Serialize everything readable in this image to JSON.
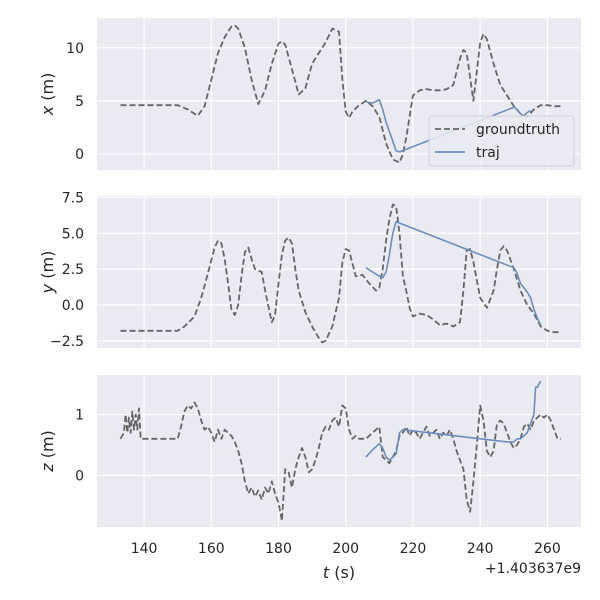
{
  "chart_data": [
    {
      "type": "line",
      "ylabel_var": "x",
      "ylabel_unit": " (m)",
      "xlim": [
        126,
        270
      ],
      "ylim": [
        -1.5,
        12.8
      ],
      "yticks": [
        0,
        5,
        10
      ],
      "ytick_labels": [
        "0",
        "5",
        "10"
      ],
      "grid": true,
      "legend": {
        "position": "lower-right",
        "entries": [
          "groundtruth",
          "traj"
        ]
      },
      "series": [
        {
          "name": "groundtruth",
          "style": "dashed",
          "color": "#666666",
          "x": [
            133,
            140,
            146,
            150,
            153,
            156,
            158,
            160,
            162,
            164,
            166,
            167,
            168,
            170,
            172,
            174,
            176,
            178,
            180,
            181,
            182,
            184,
            186,
            188,
            190,
            192,
            194,
            196,
            198,
            199,
            200,
            201,
            202,
            204,
            206,
            208,
            210,
            212,
            214,
            216,
            217,
            218,
            220,
            222,
            224,
            226,
            228,
            230,
            232,
            234,
            235,
            236,
            238,
            240,
            241,
            242,
            244,
            246,
            248,
            250,
            252,
            254,
            256,
            258,
            260,
            262,
            264
          ],
          "y": [
            4.6,
            4.6,
            4.6,
            4.6,
            4.2,
            3.6,
            4.5,
            7,
            9.5,
            11,
            12,
            12.1,
            11.8,
            10,
            7,
            4.7,
            6,
            8.5,
            10.4,
            10.6,
            10.3,
            8,
            5.6,
            6.2,
            8.5,
            9.5,
            10.5,
            11.8,
            11.5,
            7,
            4,
            3.4,
            4,
            4.6,
            5,
            4.5,
            3.5,
            1,
            -0.5,
            -0.8,
            0,
            1.5,
            5.5,
            6,
            6.1,
            6,
            6,
            6.1,
            6.5,
            9,
            9.8,
            9.5,
            5,
            10.5,
            11.3,
            10.8,
            8.5,
            6.5,
            5.5,
            4.5,
            3.8,
            3.5,
            4.2,
            4.6,
            4.6,
            4.5,
            4.5
          ]
        },
        {
          "name": "traj",
          "style": "solid",
          "color": "#6c8ebf",
          "x": [
            206,
            208,
            210,
            211,
            212,
            214,
            215,
            216,
            250,
            251,
            252,
            253,
            254,
            255
          ],
          "y": [
            4.9,
            4.8,
            5.1,
            4.2,
            3,
            1.2,
            0.3,
            0.2,
            4.4,
            4.2,
            3.8,
            3.6,
            3.9,
            4.1
          ]
        }
      ]
    },
    {
      "type": "line",
      "ylabel_var": "y",
      "ylabel_unit": " (m)",
      "xlim": [
        126,
        270
      ],
      "ylim": [
        -3.0,
        7.6
      ],
      "yticks": [
        -2.5,
        0.0,
        2.5,
        5.0,
        7.5
      ],
      "ytick_labels": [
        "−2.5",
        "0.0",
        "2.5",
        "5.0",
        "7.5"
      ],
      "grid": true,
      "series": [
        {
          "name": "groundtruth",
          "style": "dashed",
          "color": "#666666",
          "x": [
            133,
            140,
            146,
            150,
            152,
            155,
            157,
            159,
            161,
            162,
            163,
            164,
            165,
            166,
            167,
            168,
            169,
            170,
            171,
            172,
            173,
            174,
            175,
            176,
            178,
            179,
            180,
            181,
            182,
            183,
            184,
            185,
            186,
            188,
            190,
            192,
            193,
            194,
            196,
            198,
            199,
            200,
            201,
            203,
            205,
            207,
            209,
            210,
            211,
            212,
            213,
            214,
            215,
            216,
            217,
            218,
            219,
            220,
            221,
            222,
            224,
            226,
            228,
            230,
            232,
            234,
            235,
            236,
            237,
            238,
            240,
            242,
            244,
            245,
            246,
            247,
            248,
            250,
            252,
            254,
            256,
            258,
            260,
            262,
            264
          ],
          "y": [
            -1.8,
            -1.8,
            -1.8,
            -1.8,
            -1.5,
            -0.8,
            0.5,
            2.2,
            4.0,
            4.5,
            4.3,
            3.2,
            1.5,
            -0.3,
            -0.7,
            0,
            2.0,
            3.7,
            4.0,
            3.2,
            2.5,
            2.4,
            2.3,
            1.0,
            -1.2,
            -0.7,
            1.5,
            3.5,
            4.5,
            4.7,
            4.3,
            2.5,
            1.0,
            -0.5,
            -1.5,
            -2.3,
            -2.6,
            -2.5,
            -1.5,
            0.5,
            3.0,
            3.9,
            3.8,
            2.0,
            2.1,
            1.5,
            1.0,
            1.2,
            2.5,
            4.5,
            6.0,
            7.0,
            6.9,
            5.0,
            2.0,
            1.0,
            -0.2,
            -0.8,
            -0.7,
            -0.6,
            -0.7,
            -1.0,
            -1.4,
            -1.3,
            -1.5,
            -1.2,
            1.0,
            3.8,
            3.9,
            3.0,
            0.5,
            -0.2,
            1.0,
            2.5,
            3.8,
            4.1,
            3.8,
            2.5,
            1.0,
            0.0,
            -0.6,
            -1.5,
            -1.8,
            -1.9,
            -1.9
          ]
        },
        {
          "name": "traj",
          "style": "solid",
          "color": "#6c8ebf",
          "x": [
            206,
            208,
            210,
            211,
            212,
            213,
            214,
            215,
            250,
            251,
            252,
            253,
            254,
            255,
            256,
            257,
            258
          ],
          "y": [
            2.6,
            2.3,
            2.0,
            1.9,
            2.3,
            3.5,
            5.0,
            5.8,
            2.6,
            2.2,
            1.5,
            1.2,
            0.9,
            0.5,
            -0.3,
            -0.9,
            -1.4
          ]
        }
      ]
    },
    {
      "type": "line",
      "ylabel_var": "z",
      "ylabel_unit": " (m)",
      "xlim": [
        126,
        270
      ],
      "ylim": [
        -0.85,
        1.65
      ],
      "yticks": [
        0,
        1
      ],
      "ytick_labels": [
        "0",
        "1"
      ],
      "xticks": [
        140,
        160,
        180,
        200,
        220,
        240,
        260
      ],
      "xtick_labels": [
        "140",
        "160",
        "180",
        "200",
        "220",
        "240",
        "260"
      ],
      "xlabel_var": "t",
      "xlabel_unit": " (s)",
      "offset_text": "+1.403637e9",
      "grid": true,
      "series": [
        {
          "name": "groundtruth",
          "style": "dashed",
          "color": "#666666",
          "x": [
            133,
            134,
            134.5,
            135,
            135.5,
            136,
            136.5,
            137,
            137.5,
            138,
            138.5,
            139,
            140,
            145,
            150,
            151,
            152,
            153,
            154,
            155,
            156,
            157,
            158,
            159,
            160,
            161,
            162,
            163,
            164,
            165,
            166,
            167,
            168,
            169,
            170,
            171,
            172,
            173,
            174,
            175,
            176,
            177,
            178,
            179,
            180,
            181,
            182,
            183,
            184,
            185,
            186,
            187,
            188,
            189,
            190,
            191,
            192,
            193,
            194,
            195,
            196,
            197,
            198,
            199,
            200,
            201,
            202,
            203,
            204,
            205,
            206,
            207,
            208,
            209,
            210,
            211,
            212,
            213,
            214,
            215,
            216,
            217,
            218,
            219,
            220,
            221,
            222,
            223,
            224,
            225,
            226,
            227,
            228,
            229,
            230,
            231,
            232,
            233,
            234,
            235,
            236,
            237,
            238,
            239,
            240,
            241,
            242,
            243,
            244,
            245,
            246,
            247,
            248,
            249,
            250,
            251,
            252,
            253,
            254,
            255,
            256,
            257,
            258,
            259,
            260,
            261,
            262,
            263,
            264
          ],
          "y": [
            0.6,
            0.7,
            1.0,
            0.7,
            0.95,
            0.7,
            1.05,
            0.75,
            1.0,
            0.75,
            1.1,
            0.6,
            0.6,
            0.6,
            0.6,
            0.8,
            1.05,
            1.15,
            1.1,
            1.2,
            1.1,
            0.9,
            0.75,
            0.8,
            0.7,
            0.55,
            0.75,
            0.6,
            0.75,
            0.7,
            0.65,
            0.55,
            0.4,
            0.2,
            -0.1,
            -0.3,
            -0.2,
            -0.35,
            -0.25,
            -0.4,
            -0.2,
            -0.3,
            -0.1,
            -0.3,
            -0.45,
            -0.75,
            0.1,
            0.05,
            -0.2,
            0.1,
            0.3,
            0.45,
            0.3,
            0.05,
            0.1,
            0.25,
            0.45,
            0.7,
            0.8,
            0.75,
            0.9,
            0.95,
            0.8,
            1.15,
            1.1,
            0.75,
            0.6,
            0.65,
            0.6,
            0.6,
            0.6,
            0.65,
            0.7,
            0.75,
            0.8,
            0.3,
            0.25,
            0.2,
            0.3,
            0.4,
            0.65,
            0.7,
            0.8,
            0.65,
            0.75,
            0.7,
            0.6,
            0.7,
            0.8,
            0.65,
            0.7,
            0.75,
            0.6,
            0.7,
            0.65,
            0.75,
            0.6,
            0.4,
            0.25,
            0.1,
            -0.4,
            -0.6,
            -0.1,
            0.5,
            1.15,
            0.9,
            0.4,
            0.3,
            0.4,
            0.85,
            0.9,
            0.85,
            0.7,
            0.55,
            0.45,
            0.5,
            0.6,
            0.8,
            0.85,
            0.75,
            0.9,
            0.95,
            1.0,
            0.95,
            1.0,
            0.9,
            0.75,
            0.6,
            0.6
          ]
        },
        {
          "name": "traj",
          "style": "solid",
          "color": "#6c8ebf",
          "x": [
            206,
            208,
            210,
            211,
            212,
            213,
            214,
            215,
            216,
            217,
            248,
            250,
            251,
            252,
            253,
            254,
            255,
            256,
            256.5,
            257,
            258
          ],
          "y": [
            0.3,
            0.42,
            0.52,
            0.45,
            0.3,
            0.25,
            0.3,
            0.35,
            0.7,
            0.75,
            0.55,
            0.55,
            0.6,
            0.6,
            0.65,
            0.7,
            0.85,
            1.0,
            1.45,
            1.45,
            1.55
          ]
        }
      ]
    }
  ]
}
